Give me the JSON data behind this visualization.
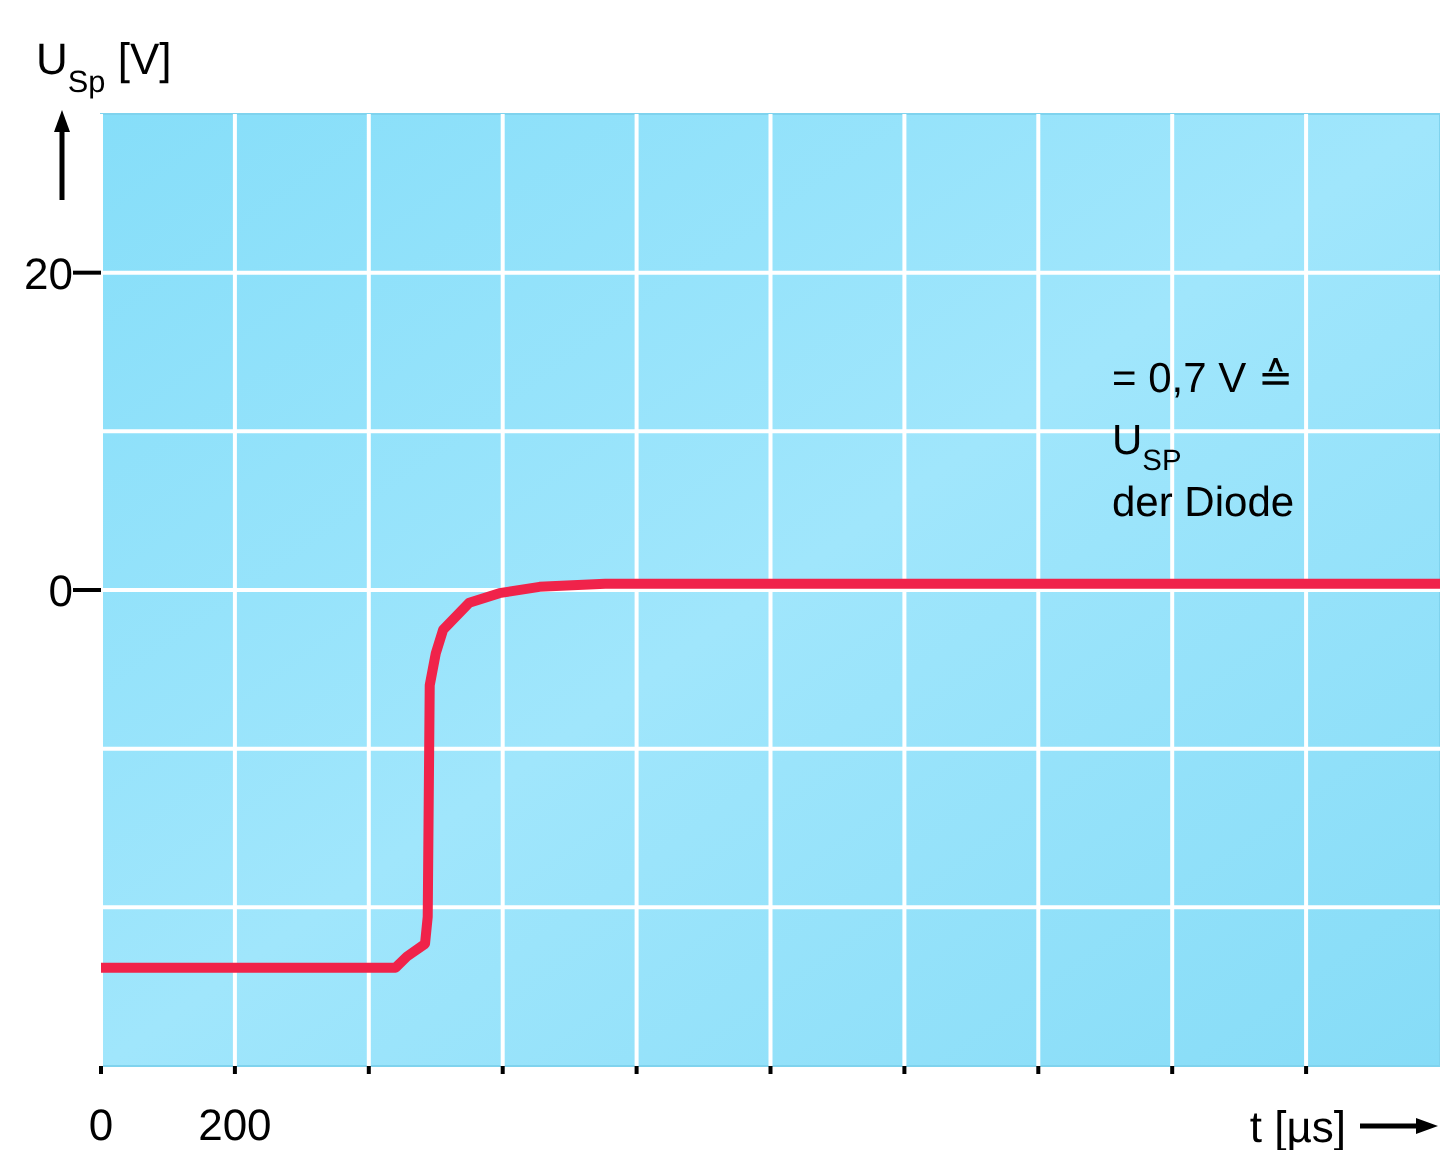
{
  "chart_data": {
    "type": "line",
    "xlabel": "t [µs]",
    "ylabel": "U$_{Sp}$ [V]",
    "x": [
      0,
      440,
      457,
      484,
      488,
      491,
      500,
      511,
      550,
      595,
      655,
      753,
      2000
    ],
    "series": [
      {
        "color": "#f0234a",
        "values": [
          -23.8,
          -23.8,
          -23.1,
          -22.3,
          -20.6,
          -6,
          -4,
          -2.5,
          -0.8,
          -0.2,
          0.2,
          0.4,
          0.4
        ]
      }
    ],
    "xlim": [
      0,
      2000
    ],
    "ylim": [
      -30,
      30
    ],
    "xticks": [
      0,
      200,
      {
        "value": 400,
        "label": null
      },
      {
        "value": 600,
        "label": null
      },
      {
        "value": 800,
        "label": null
      },
      {
        "value": 1000,
        "label": null
      },
      {
        "value": 1200,
        "label": null
      },
      {
        "value": 1400,
        "label": null
      },
      {
        "value": 1600,
        "label": null
      },
      {
        "value": 1800,
        "label": null
      }
    ],
    "yticks": [
      {
        "value": -20,
        "label": null
      },
      {
        "value": -10,
        "label": null
      },
      0,
      {
        "value": 10,
        "label": null
      },
      20
    ],
    "grid": true,
    "marker": "none",
    "line_style": "solid",
    "annotations": [
      "= 0,7 V ≙\nU$_{SP}$\nder Diode"
    ]
  }
}
